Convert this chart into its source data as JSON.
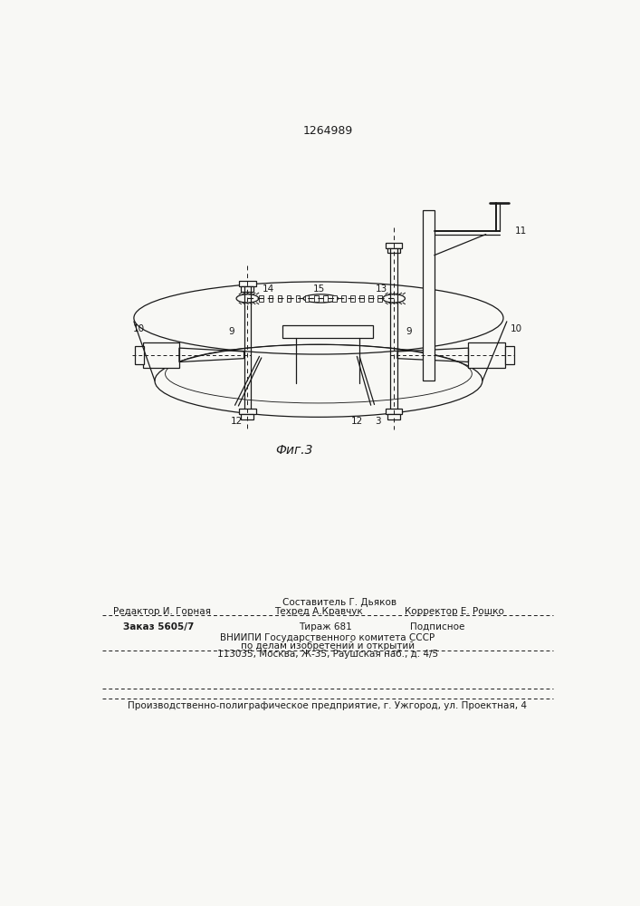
{
  "patent_number": "1264989",
  "fig_caption": "Фиг.3",
  "bg_color": "#f8f8f5",
  "line_color": "#1a1a1a",
  "footer": {
    "composer": "Составитель Г. Дьяков",
    "editor": "Редактор И. Горная",
    "techred": "Техред А.Кравчук",
    "corrector": "Корректор Е. Рошко",
    "order": "Заказ 5605/7",
    "tirazh": "Тираж 681",
    "podpisnoe": "Подписное",
    "vniip1": "ВНИИПИ Государственного комитета СССР",
    "vniip2": "по делам изобретений и открытий",
    "vniip3": "113035, Москва, Ж-35, Раушская наб., д. 4/5",
    "production": "Производственно-полиграфическое предприятие, г. Ужгород, ул. Проектная, 4"
  }
}
